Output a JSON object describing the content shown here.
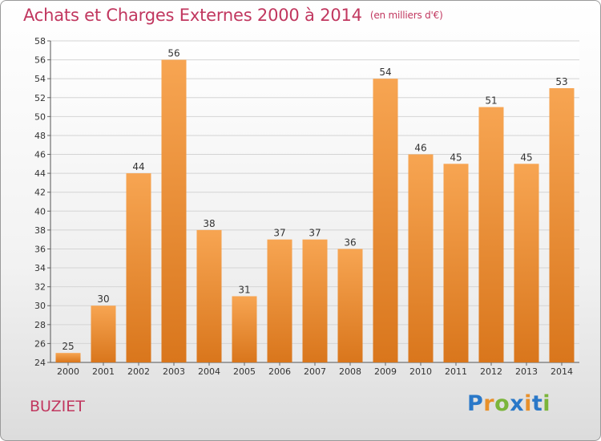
{
  "header": {
    "title": "Achats et Charges Externes 2000 à 2014",
    "unit": "(en milliers d'€)"
  },
  "footer": {
    "commune": "BUZIET",
    "logo_text": "Proxiti"
  },
  "colors": {
    "bar_light": "#f7a552",
    "bar_dark": "#d9761c",
    "title": "#c1375f"
  },
  "chart_data": {
    "type": "bar",
    "title": "Achats et Charges Externes 2000 à 2014",
    "subtitle": "(en milliers d'€)",
    "categories": [
      "2000",
      "2001",
      "2002",
      "2003",
      "2004",
      "2005",
      "2006",
      "2007",
      "2008",
      "2009",
      "2010",
      "2011",
      "2012",
      "2013",
      "2014"
    ],
    "values": [
      25,
      30,
      44,
      56,
      38,
      31,
      37,
      37,
      36,
      54,
      46,
      45,
      51,
      45,
      53
    ],
    "data_labels": [
      "25",
      "30",
      "44",
      "56",
      "38",
      "31",
      "37",
      "37",
      "36",
      "54",
      "46",
      "45",
      "51",
      "45",
      "53"
    ],
    "ylim": [
      24,
      58
    ],
    "yticks": [
      "24",
      "26",
      "28",
      "30",
      "32",
      "34",
      "36",
      "38",
      "40",
      "42",
      "44",
      "46",
      "48",
      "50",
      "52",
      "54",
      "56",
      "58"
    ],
    "grid": true,
    "legend": "none"
  }
}
